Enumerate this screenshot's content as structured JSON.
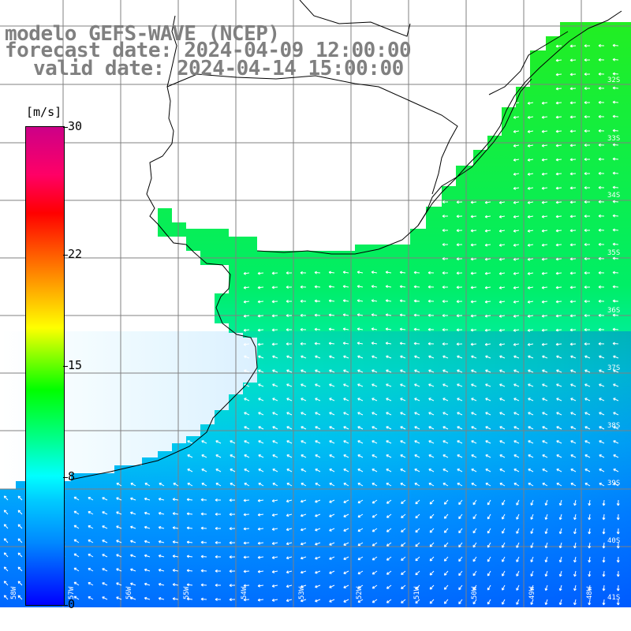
{
  "header": {
    "model_line": "modelo GEFS-WAVE (NCEP)",
    "forecast_line": "forecast date: 2024-04-09 12:00:00",
    "valid_line": "valid date: 2024-04-14 15:00:00"
  },
  "colorbar": {
    "unit": "[m/s]",
    "ticks": [
      {
        "value": 30,
        "label": "30"
      },
      {
        "value": 22,
        "label": "22"
      },
      {
        "value": 15,
        "label": "15"
      },
      {
        "value": 8,
        "label": "8"
      },
      {
        "value": 0,
        "label": "0"
      }
    ],
    "colors": [
      "#0000ff",
      "#00ccff",
      "#00ff00",
      "#ffff00",
      "#ff0000",
      "#cc0088"
    ]
  },
  "grid": {
    "lat_labels": [
      "32S",
      "33S",
      "34S",
      "35S",
      "36S",
      "37S",
      "38S",
      "39S",
      "40S",
      "41S"
    ],
    "lon_labels": [
      "58W",
      "57W",
      "56W",
      "55W",
      "54W",
      "53W",
      "52W",
      "51W",
      "50W",
      "49W",
      "48W"
    ]
  },
  "colors": {
    "land": "#ffffff",
    "coast": "#000000",
    "gridline": "#808080",
    "title": "#808080",
    "arrow": "#ffffff"
  }
}
